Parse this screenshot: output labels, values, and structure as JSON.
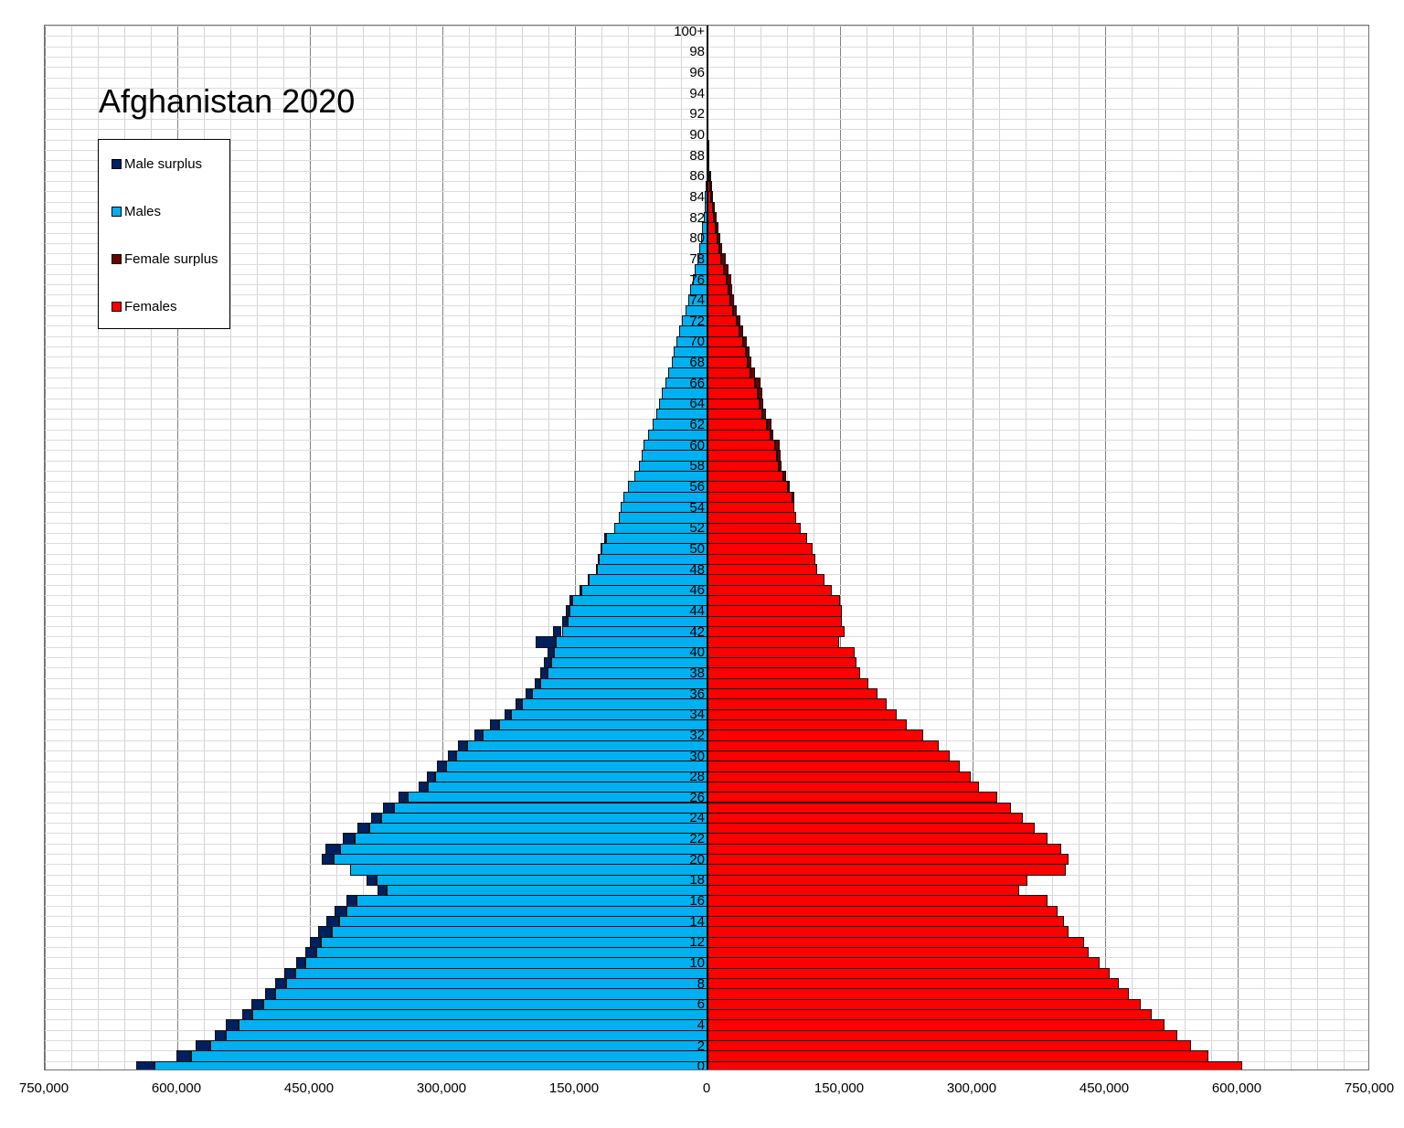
{
  "chart_data": {
    "type": "bar",
    "subtype": "population-pyramid",
    "title": "Afghanistan 2020",
    "xlabel": "",
    "ylabel": "",
    "xlim": [
      -750000,
      750000
    ],
    "x_ticks": [
      {
        "value": -750000,
        "label": "750,000"
      },
      {
        "value": -600000,
        "label": "600,000"
      },
      {
        "value": -450000,
        "label": "450,000"
      },
      {
        "value": -300000,
        "label": "300,000"
      },
      {
        "value": -150000,
        "label": "150,000"
      },
      {
        "value": 0,
        "label": "0"
      },
      {
        "value": 150000,
        "label": "150,000"
      },
      {
        "value": 300000,
        "label": "300,000"
      },
      {
        "value": 450000,
        "label": "450,000"
      },
      {
        "value": 600000,
        "label": "600,000"
      },
      {
        "value": 750000,
        "label": "750,000"
      }
    ],
    "age_labels": [
      "0",
      "2",
      "4",
      "6",
      "8",
      "10",
      "12",
      "14",
      "16",
      "18",
      "20",
      "22",
      "24",
      "26",
      "28",
      "30",
      "32",
      "34",
      "36",
      "38",
      "40",
      "42",
      "44",
      "46",
      "48",
      "50",
      "52",
      "54",
      "56",
      "58",
      "60",
      "62",
      "64",
      "66",
      "68",
      "70",
      "72",
      "74",
      "76",
      "78",
      "80",
      "82",
      "84",
      "86",
      "88",
      "90",
      "92",
      "94",
      "96",
      "98",
      "100+"
    ],
    "grid": {
      "major_step": 150000,
      "minor_step": 30000,
      "horizontal_per_age": true
    },
    "legend": {
      "position": "upper-left",
      "entries": [
        {
          "name": "Male surplus",
          "color": "#002060"
        },
        {
          "name": "Males",
          "color": "#00b0f0"
        },
        {
          "name": "Female surplus",
          "color": "#6b0000"
        },
        {
          "name": "Females",
          "color": "#ff0000"
        }
      ]
    },
    "colors": {
      "males": "#00b0f0",
      "females": "#ff0000",
      "male_surplus": "#002060",
      "female_surplus": "#6b0000"
    },
    "ages": [
      0,
      1,
      2,
      3,
      4,
      5,
      6,
      7,
      8,
      9,
      10,
      11,
      12,
      13,
      14,
      15,
      16,
      17,
      18,
      19,
      20,
      21,
      22,
      23,
      24,
      25,
      26,
      27,
      28,
      29,
      30,
      31,
      32,
      33,
      34,
      35,
      36,
      37,
      38,
      39,
      40,
      41,
      42,
      43,
      44,
      45,
      46,
      47,
      48,
      49,
      50,
      51,
      52,
      53,
      54,
      55,
      56,
      57,
      58,
      59,
      60,
      61,
      62,
      63,
      64,
      65,
      66,
      67,
      68,
      69,
      70,
      71,
      72,
      73,
      74,
      75,
      76,
      77,
      78,
      79,
      80,
      81,
      82,
      83,
      84,
      85,
      86,
      87,
      88,
      89,
      90,
      91,
      92,
      93,
      94,
      95,
      96,
      97,
      98,
      99,
      100
    ],
    "series": [
      {
        "name": "Males",
        "values": [
          626000,
          584000,
          563000,
          545000,
          531000,
          515000,
          503000,
          489000,
          477000,
          467000,
          455000,
          443000,
          438000,
          425000,
          417000,
          409000,
          397000,
          363000,
          374000,
          405000,
          423000,
          416000,
          399000,
          383000,
          369000,
          355000,
          339000,
          317000,
          308000,
          296000,
          284000,
          272000,
          254000,
          236000,
          222000,
          210000,
          199000,
          189000,
          181000,
          177000,
          174000,
          172000,
          165000,
          158000,
          156000,
          153000,
          143000,
          134000,
          125000,
          123000,
          120000,
          115000,
          106000,
          100000,
          98000,
          95000,
          90000,
          83000,
          78000,
          75000,
          72000,
          67000,
          62000,
          58000,
          55000,
          52000,
          48000,
          44000,
          40000,
          38000,
          35000,
          32000,
          29000,
          25000,
          22000,
          20000,
          17000,
          14000,
          11000,
          9000,
          7000,
          5800,
          4500,
          3400,
          2600,
          1900,
          1300,
          900,
          600,
          400,
          250,
          150,
          90,
          60,
          40,
          25,
          15,
          10,
          5,
          3,
          2
        ]
      },
      {
        "name": "Females",
        "values": [
          605000,
          567000,
          547000,
          532000,
          517000,
          503000,
          490000,
          477000,
          465000,
          455000,
          444000,
          431000,
          426000,
          409000,
          403000,
          396000,
          385000,
          353000,
          362000,
          405000,
          409000,
          400000,
          385000,
          370000,
          357000,
          343000,
          328000,
          307000,
          298000,
          286000,
          274000,
          262000,
          244000,
          226000,
          214000,
          203000,
          192000,
          182000,
          173000,
          169000,
          167000,
          149000,
          155000,
          152000,
          152000,
          150000,
          141000,
          132000,
          124000,
          122000,
          119000,
          113000,
          106000,
          100000,
          98000,
          96000,
          91000,
          86000,
          81000,
          79000,
          77000,
          71000,
          67000,
          62000,
          59000,
          57000,
          54000,
          49000,
          45000,
          43000,
          40000,
          36000,
          33000,
          29000,
          26000,
          24000,
          22000,
          19000,
          16000,
          13000,
          11000,
          9200,
          7400,
          5800,
          4400,
          3200,
          2200,
          1400,
          900,
          550,
          330,
          190,
          110,
          65,
          40,
          25,
          15,
          10,
          6,
          3,
          2
        ]
      },
      {
        "name": "Male surplus",
        "values": [
          21000,
          17000,
          16000,
          13000,
          14000,
          12000,
          13000,
          12000,
          12000,
          12000,
          11000,
          12000,
          12000,
          16000,
          14000,
          13000,
          12000,
          10000,
          12000,
          0,
          14000,
          16000,
          14000,
          13000,
          12000,
          12000,
          11000,
          10000,
          10000,
          10000,
          10000,
          10000,
          10000,
          10000,
          8000,
          7000,
          7000,
          7000,
          8000,
          8000,
          7000,
          23000,
          10000,
          6000,
          4000,
          3000,
          2000,
          2000,
          1000,
          1000,
          1000,
          2000,
          0,
          0,
          0,
          0,
          0,
          0,
          0,
          0,
          0,
          0,
          0,
          0,
          0,
          0,
          0,
          0,
          0,
          0,
          0,
          0,
          0,
          0,
          0,
          0,
          0,
          0,
          0,
          0,
          0,
          0,
          0,
          0,
          0,
          0,
          0,
          0,
          0,
          0,
          0,
          0,
          0,
          0,
          0,
          0,
          0,
          0,
          0,
          0,
          0
        ]
      },
      {
        "name": "Female surplus",
        "values": [
          0,
          0,
          0,
          0,
          0,
          0,
          0,
          0,
          0,
          0,
          0,
          0,
          0,
          0,
          0,
          0,
          0,
          0,
          0,
          0,
          0,
          0,
          0,
          0,
          0,
          0,
          0,
          0,
          0,
          0,
          0,
          0,
          0,
          0,
          0,
          0,
          0,
          0,
          0,
          0,
          0,
          0,
          0,
          0,
          0,
          0,
          0,
          0,
          0,
          0,
          0,
          0,
          0,
          0,
          0,
          1000,
          1000,
          3000,
          3000,
          4000,
          5000,
          4000,
          5000,
          4000,
          4000,
          5000,
          6000,
          5000,
          5000,
          5000,
          5000,
          4000,
          4000,
          4000,
          4000,
          4000,
          5000,
          5000,
          5000,
          4000,
          4000,
          3400,
          2900,
          2400,
          1800,
          1300,
          900,
          500,
          300,
          150,
          80,
          40,
          20,
          5,
          0,
          0,
          0,
          0,
          1,
          0,
          0
        ]
      }
    ]
  }
}
